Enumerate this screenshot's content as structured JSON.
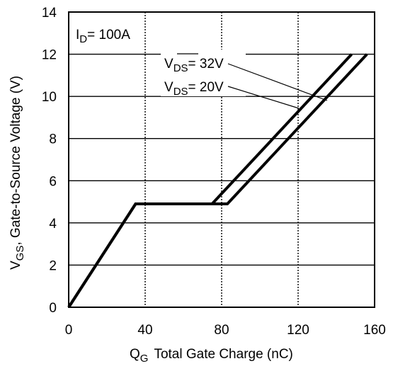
{
  "chart_data": {
    "type": "line",
    "title": "",
    "xlabel": {
      "main": "Q",
      "sub": "G",
      "rest": "Total Gate Charge (nC)"
    },
    "ylabel": {
      "main": "V",
      "sub": "GS",
      "rest": ", Gate-to-Source Voltage (V)"
    },
    "xlim": [
      0,
      160
    ],
    "ylim": [
      0,
      14
    ],
    "xticks": [
      0,
      40,
      80,
      120,
      160
    ],
    "yticks": [
      0,
      2,
      4,
      6,
      8,
      10,
      12,
      14
    ],
    "grid": true,
    "series": [
      {
        "label": {
          "main": "V",
          "sub": "DS",
          "rest": "= 32V"
        },
        "points": [
          [
            0,
            0
          ],
          [
            35,
            4.9
          ],
          [
            75,
            4.9
          ],
          [
            148,
            12
          ]
        ]
      },
      {
        "label": {
          "main": "V",
          "sub": "DS",
          "rest": "= 20V"
        },
        "points": [
          [
            0,
            0
          ],
          [
            35,
            4.9
          ],
          [
            83,
            4.9
          ],
          [
            156,
            12
          ]
        ]
      }
    ],
    "annotation": {
      "main": "I",
      "sub": "D",
      "rest": "= 100A"
    },
    "line_color": "#000000"
  }
}
